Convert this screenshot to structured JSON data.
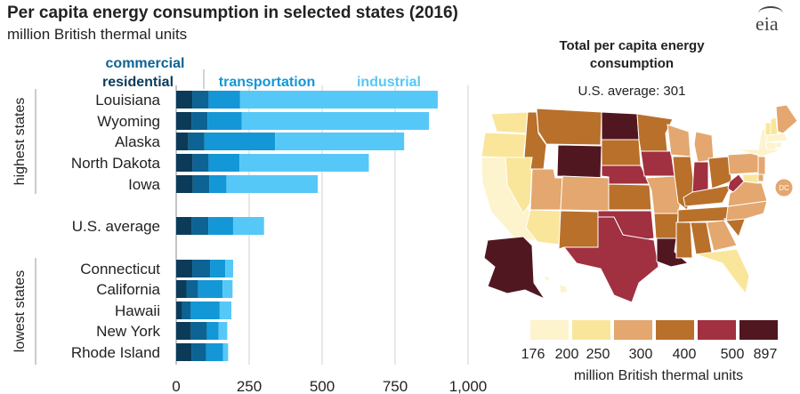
{
  "chart_data": [
    {
      "type": "bar",
      "stacked": true,
      "orientation": "horizontal",
      "title": "Per capita energy consumption in selected states (2016)",
      "subtitle": "million British thermal units",
      "categories": [
        "Louisiana",
        "Wyoming",
        "Alaska",
        "North Dakota",
        "Iowa",
        "U.S. average",
        "Connecticut",
        "California",
        "Hawaii",
        "New York",
        "Rhode Island"
      ],
      "groups": [
        {
          "label": "highest states",
          "categories": [
            "Louisiana",
            "Wyoming",
            "Alaska",
            "North Dakota",
            "Iowa"
          ]
        },
        {
          "label": "lowest states",
          "categories": [
            "Connecticut",
            "California",
            "Hawaii",
            "New York",
            "Rhode Island"
          ]
        }
      ],
      "series": [
        {
          "name": "residential",
          "color": "#0b3b59",
          "values": [
            55,
            52,
            42,
            56,
            57,
            53,
            55,
            35,
            20,
            50,
            52
          ]
        },
        {
          "name": "commercial",
          "color": "#0d6394",
          "values": [
            56,
            55,
            55,
            55,
            56,
            57,
            61,
            40,
            30,
            55,
            50
          ]
        },
        {
          "name": "transportation",
          "color": "#1497d6",
          "values": [
            108,
            117,
            242,
            106,
            59,
            85,
            52,
            84,
            99,
            40,
            58
          ]
        },
        {
          "name": "industrial",
          "color": "#56c8f7",
          "values": [
            677,
            642,
            442,
            443,
            313,
            106,
            27,
            34,
            40,
            30,
            18
          ]
        }
      ],
      "xlim": [
        0,
        1000
      ],
      "xticks": [
        "0",
        "250",
        "500",
        "750",
        "1,000"
      ],
      "grid": true
    },
    {
      "type": "heatmap",
      "title": "Total per capita energy consumption",
      "annotation": "U.S. average: 301",
      "legend": {
        "breaks": [
          "176",
          "200",
          "250",
          "300",
          "400",
          "500",
          "897"
        ],
        "colors": [
          "#fdf3cc",
          "#fae69a",
          "#e3a76f",
          "#b8702b",
          "#a13040",
          "#511720"
        ],
        "unit": "million British thermal units"
      },
      "regions": [
        {
          "name": "WA",
          "bin": 1
        },
        {
          "name": "OR",
          "bin": 1
        },
        {
          "name": "CA",
          "bin": 0
        },
        {
          "name": "NV",
          "bin": 1
        },
        {
          "name": "ID",
          "bin": 3
        },
        {
          "name": "MT",
          "bin": 3
        },
        {
          "name": "WY",
          "bin": 5
        },
        {
          "name": "UT",
          "bin": 2
        },
        {
          "name": "CO",
          "bin": 2
        },
        {
          "name": "AZ",
          "bin": 1
        },
        {
          "name": "NM",
          "bin": 3
        },
        {
          "name": "ND",
          "bin": 5
        },
        {
          "name": "SD",
          "bin": 3
        },
        {
          "name": "NE",
          "bin": 4
        },
        {
          "name": "KS",
          "bin": 3
        },
        {
          "name": "OK",
          "bin": 4
        },
        {
          "name": "TX",
          "bin": 4
        },
        {
          "name": "MN",
          "bin": 3
        },
        {
          "name": "IA",
          "bin": 4
        },
        {
          "name": "MO",
          "bin": 2
        },
        {
          "name": "AR",
          "bin": 3
        },
        {
          "name": "LA",
          "bin": 5
        },
        {
          "name": "WI",
          "bin": 2
        },
        {
          "name": "IL",
          "bin": 3
        },
        {
          "name": "MI",
          "bin": 2
        },
        {
          "name": "IN",
          "bin": 4
        },
        {
          "name": "OH",
          "bin": 3
        },
        {
          "name": "KY",
          "bin": 3
        },
        {
          "name": "TN",
          "bin": 3
        },
        {
          "name": "MS",
          "bin": 3
        },
        {
          "name": "AL",
          "bin": 3
        },
        {
          "name": "GA",
          "bin": 2
        },
        {
          "name": "FL",
          "bin": 1
        },
        {
          "name": "SC",
          "bin": 3
        },
        {
          "name": "NC",
          "bin": 2
        },
        {
          "name": "VA",
          "bin": 2
        },
        {
          "name": "WV",
          "bin": 4
        },
        {
          "name": "PA",
          "bin": 2
        },
        {
          "name": "NY",
          "bin": 0
        },
        {
          "name": "VT",
          "bin": 1
        },
        {
          "name": "NH",
          "bin": 1
        },
        {
          "name": "ME",
          "bin": 2
        },
        {
          "name": "MA",
          "bin": 0
        },
        {
          "name": "CT",
          "bin": 0
        },
        {
          "name": "RI",
          "bin": 0
        },
        {
          "name": "NJ",
          "bin": 2
        },
        {
          "name": "DE",
          "bin": 2
        },
        {
          "name": "MD",
          "bin": 1
        },
        {
          "name": "DC",
          "bin": 2
        },
        {
          "name": "AK",
          "bin": 5
        },
        {
          "name": "HI",
          "bin": 0
        }
      ]
    }
  ],
  "brand": "eia"
}
